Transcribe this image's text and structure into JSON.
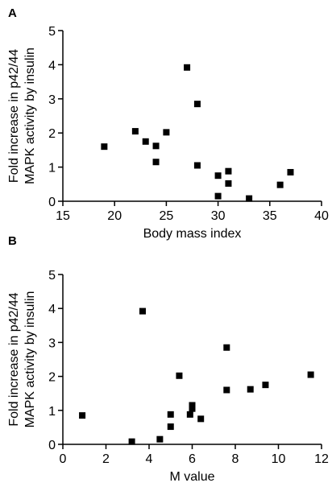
{
  "chart_data": [
    {
      "type": "scatter",
      "panel": "A",
      "xlabel": "Body mass index",
      "ylabel": [
        "Fold increase in p42/44",
        "MAPK activity by insulin"
      ],
      "xlim": [
        15,
        40
      ],
      "ylim": [
        0,
        5
      ],
      "xticks": [
        15,
        20,
        25,
        30,
        35,
        40
      ],
      "yticks": [
        0,
        1,
        2,
        3,
        4,
        5
      ],
      "grid": false,
      "points": [
        {
          "x": 19,
          "y": 1.6
        },
        {
          "x": 22,
          "y": 2.05
        },
        {
          "x": 23,
          "y": 1.75
        },
        {
          "x": 24,
          "y": 1.62
        },
        {
          "x": 24,
          "y": 1.15
        },
        {
          "x": 25,
          "y": 2.02
        },
        {
          "x": 27,
          "y": 3.92
        },
        {
          "x": 28,
          "y": 2.85
        },
        {
          "x": 28,
          "y": 1.05
        },
        {
          "x": 30,
          "y": 0.75
        },
        {
          "x": 30,
          "y": 0.15
        },
        {
          "x": 31,
          "y": 0.88
        },
        {
          "x": 31,
          "y": 0.52
        },
        {
          "x": 33,
          "y": 0.08
        },
        {
          "x": 36,
          "y": 0.48
        },
        {
          "x": 37,
          "y": 0.85
        }
      ]
    },
    {
      "type": "scatter",
      "panel": "B",
      "xlabel": "M value",
      "ylabel": [
        "Fold increase in p42/44",
        "MAPK activity by insulin"
      ],
      "xlim": [
        0,
        12
      ],
      "ylim": [
        0,
        5
      ],
      "xticks": [
        0,
        2,
        4,
        6,
        8,
        10,
        12
      ],
      "yticks": [
        0,
        1,
        2,
        3,
        4,
        5
      ],
      "grid": false,
      "points": [
        {
          "x": 0.9,
          "y": 0.85
        },
        {
          "x": 3.2,
          "y": 0.08
        },
        {
          "x": 3.7,
          "y": 3.92
        },
        {
          "x": 4.5,
          "y": 0.15
        },
        {
          "x": 5.0,
          "y": 0.88
        },
        {
          "x": 5.0,
          "y": 0.52
        },
        {
          "x": 5.4,
          "y": 2.02
        },
        {
          "x": 5.9,
          "y": 0.88
        },
        {
          "x": 6.0,
          "y": 1.15
        },
        {
          "x": 6.0,
          "y": 1.05
        },
        {
          "x": 6.4,
          "y": 0.75
        },
        {
          "x": 7.6,
          "y": 2.85
        },
        {
          "x": 7.6,
          "y": 1.6
        },
        {
          "x": 8.7,
          "y": 1.62
        },
        {
          "x": 9.4,
          "y": 1.75
        },
        {
          "x": 11.5,
          "y": 2.05
        }
      ]
    }
  ]
}
